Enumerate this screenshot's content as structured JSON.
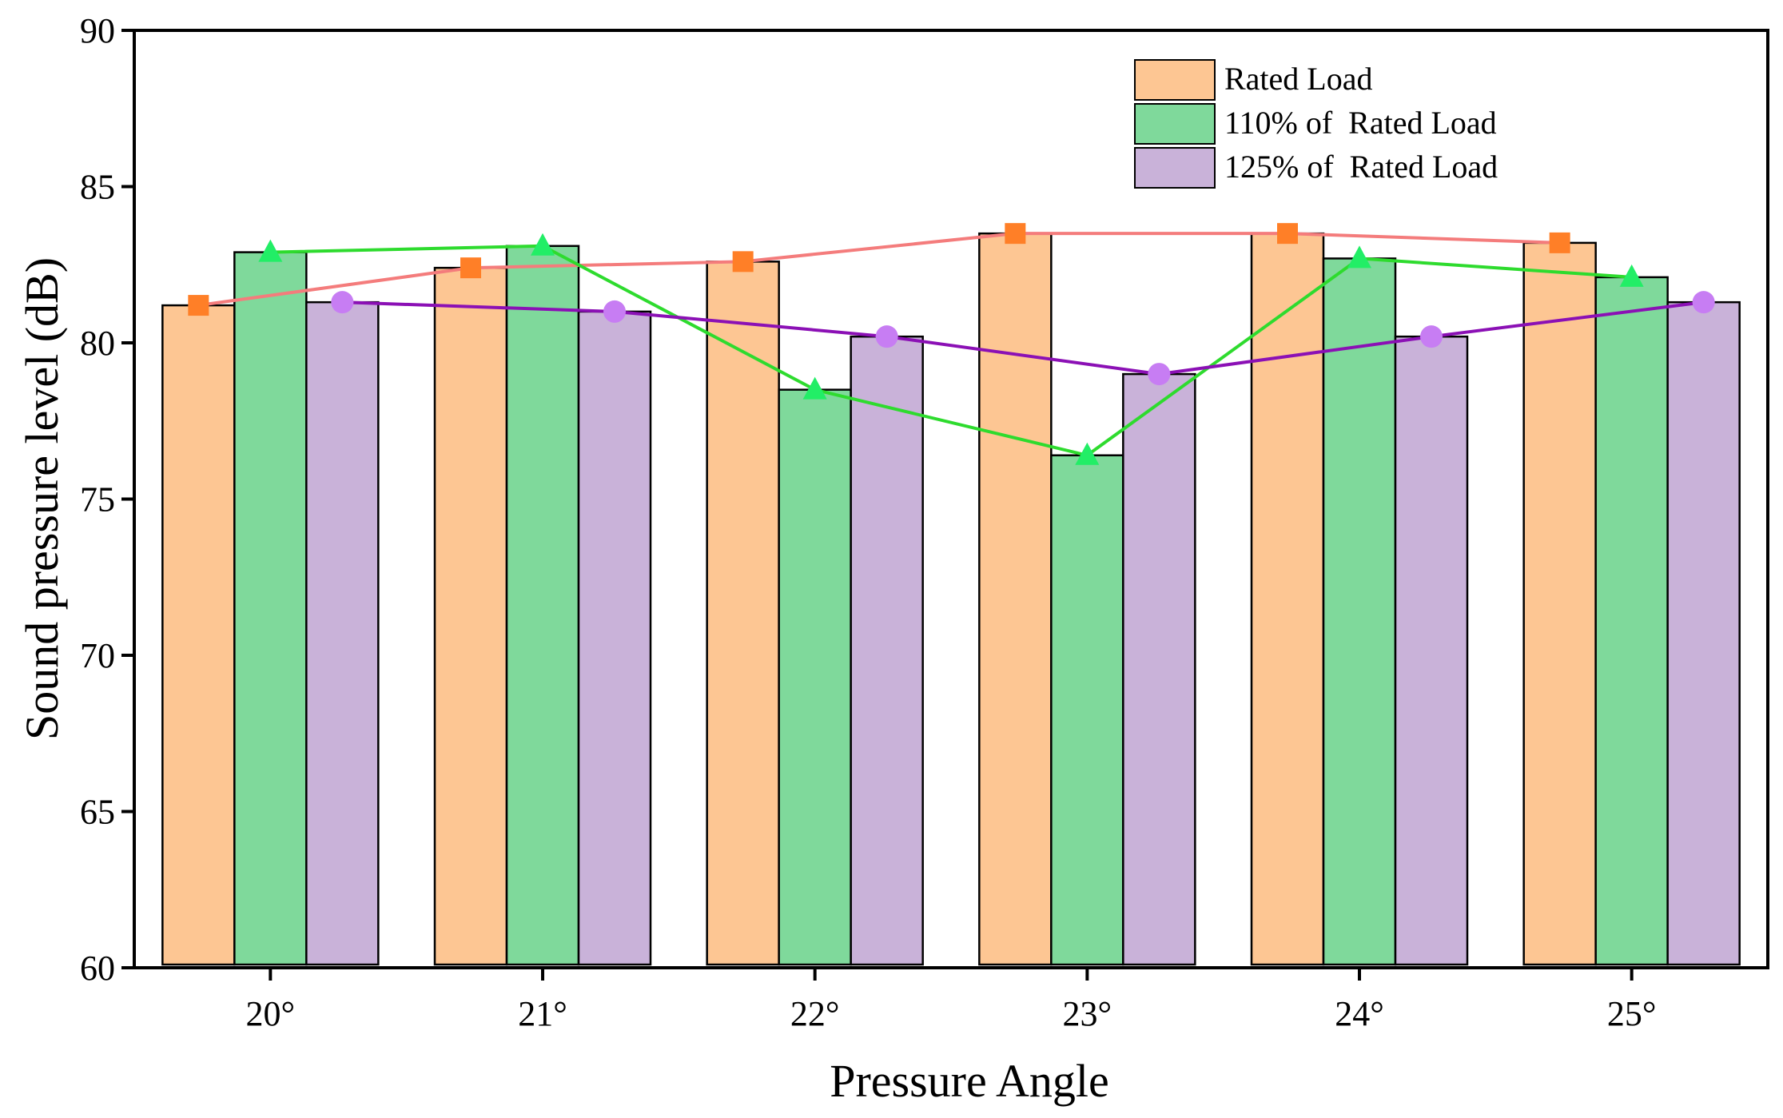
{
  "chart_data": {
    "type": "bar",
    "title": "",
    "xlabel": "Pressure Angle",
    "ylabel": "Sound pressure level (dB)",
    "ylim": [
      60,
      90
    ],
    "yticks": [
      "60",
      "65",
      "70",
      "75",
      "80",
      "85",
      "90"
    ],
    "categories": [
      "20°",
      "21°",
      "22°",
      "23°",
      "24°",
      "25°"
    ],
    "legend_position": "top-right",
    "series": [
      {
        "name": "Rated Load",
        "values": [
          81.2,
          82.4,
          82.6,
          83.5,
          83.5,
          83.2
        ],
        "bar_color": "#FDC693",
        "line_color": "#F47C7C",
        "marker_color": "#FF7F27",
        "marker": "square"
      },
      {
        "name": "110% of  Rated Load",
        "values": [
          82.9,
          83.1,
          78.5,
          76.4,
          82.7,
          82.1
        ],
        "bar_color": "#7FD99B",
        "line_color": "#2EDB2E",
        "marker_color": "#22EE66",
        "marker": "triangle"
      },
      {
        "name": "125% of  Rated Load",
        "values": [
          81.3,
          81.0,
          80.2,
          79.0,
          80.2,
          81.3
        ],
        "bar_color": "#C9B2D9",
        "line_color": "#8B10B5",
        "marker_color": "#C77DF3",
        "marker": "circle"
      }
    ]
  }
}
